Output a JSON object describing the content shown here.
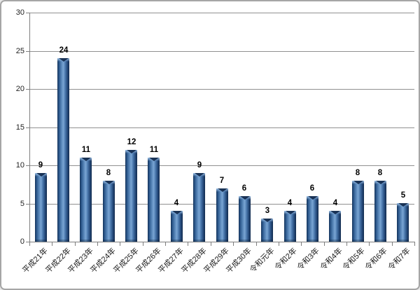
{
  "chart_data": {
    "type": "bar",
    "title": "",
    "xlabel": "",
    "ylabel": "",
    "categories": [
      "平成21年",
      "平成22年",
      "平成23年",
      "平成24年",
      "平成25年",
      "平成26年",
      "平成27年",
      "平成28年",
      "平成29年",
      "平成30年",
      "令和元年",
      "令和2年",
      "令和3年",
      "令和4年",
      "令和5年",
      "令和6年",
      "令和7年"
    ],
    "values": [
      9,
      24,
      11,
      8,
      12,
      11,
      4,
      9,
      7,
      6,
      3,
      4,
      6,
      4,
      8,
      8,
      5
    ],
    "yticks": [
      0,
      5,
      10,
      15,
      20,
      25,
      30
    ],
    "ylim": [
      0,
      30
    ],
    "grid": true,
    "legend": "none",
    "data_labels": true,
    "x_label_rotation_deg": 45,
    "colors": {
      "bar_fill": "#4f81bd",
      "bar_edge": "#17375e",
      "bar_highlight": "#7fa8d4",
      "gridline": "#909090",
      "axis": "#7f7f7f",
      "tick_label": "#1f1f1f",
      "value_label": "#000000",
      "background": "#ffffff",
      "border": "#a6a6a6"
    }
  }
}
